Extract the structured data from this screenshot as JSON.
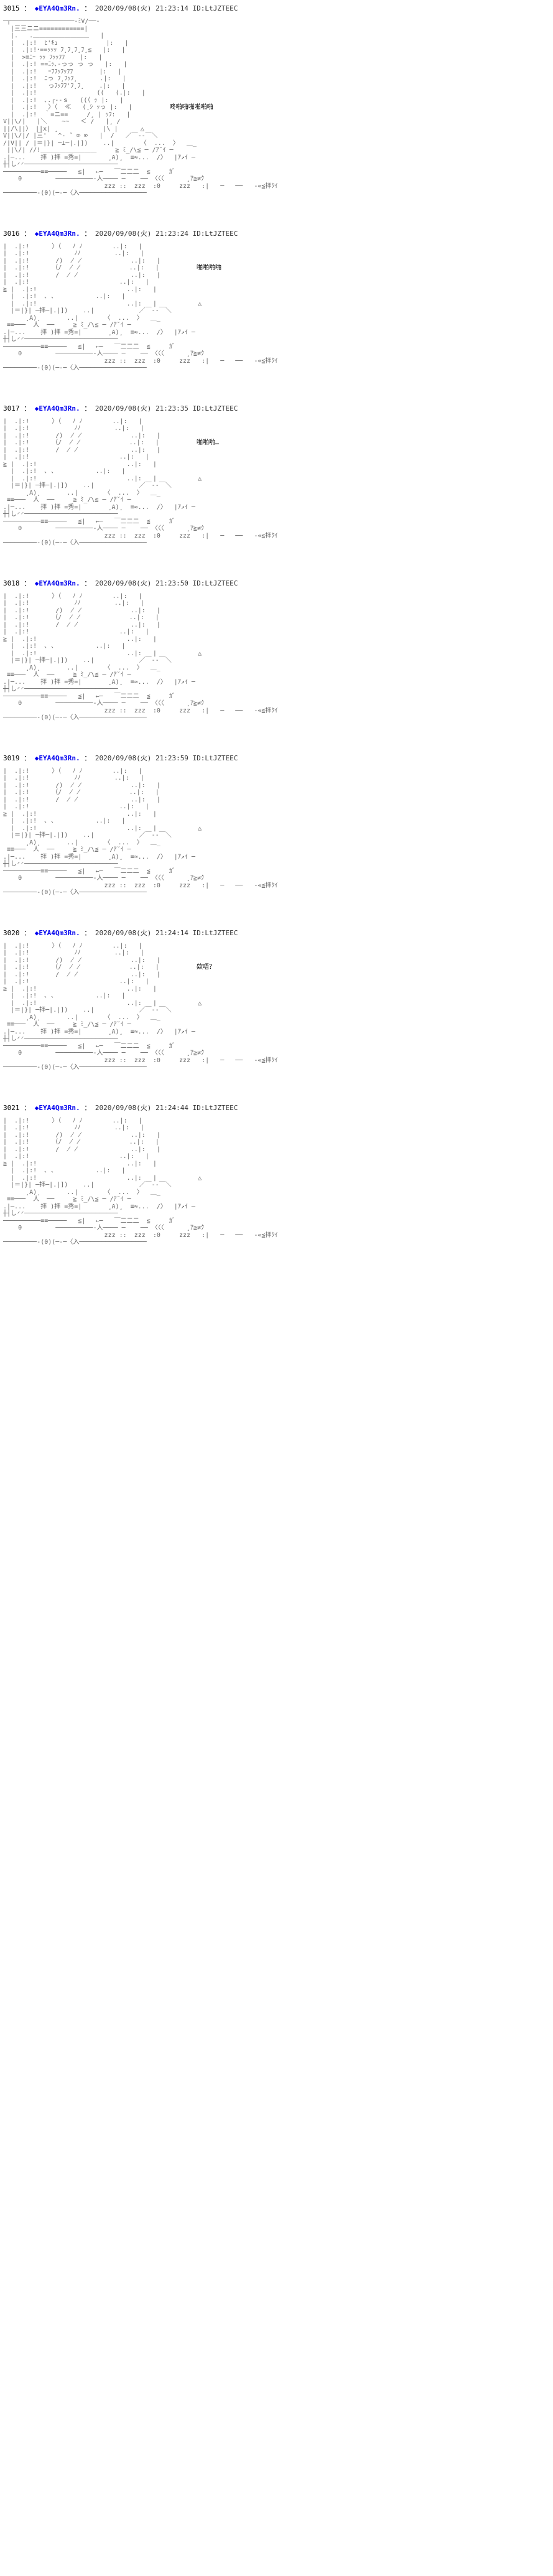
{
  "posts": [
    {
      "num": "3015",
      "name": "◆EYA4Qm3Rn.",
      "date": "2020/09/08(火) 21:23:14",
      "id": "ID:LtJZTEEC",
      "speech": "咚啪啪啪啪啪啪",
      "aa_type": "full"
    },
    {
      "num": "3016",
      "name": "◆EYA4Qm3Rn.",
      "date": "2020/09/08(火) 21:23:24",
      "id": "ID:LtJZTEEC",
      "speech": "啪啪啪啪",
      "aa_type": "partial"
    },
    {
      "num": "3017",
      "name": "◆EYA4Qm3Rn.",
      "date": "2020/09/08(火) 21:23:35",
      "id": "ID:LtJZTEEC",
      "speech": "啪啪啪…",
      "aa_type": "partial"
    },
    {
      "num": "3018",
      "name": "◆EYA4Qm3Rn.",
      "date": "2020/09/08(火) 21:23:50",
      "id": "ID:LtJZTEEC",
      "speech": "",
      "aa_type": "partial"
    },
    {
      "num": "3019",
      "name": "◆EYA4Qm3Rn.",
      "date": "2020/09/08(火) 21:23:59",
      "id": "ID:LtJZTEEC",
      "speech": "",
      "aa_type": "partial"
    },
    {
      "num": "3020",
      "name": "◆EYA4Qm3Rn.",
      "date": "2020/09/08(火) 21:24:14",
      "id": "ID:LtJZTEEC",
      "speech": "欸唔？",
      "aa_type": "partial"
    },
    {
      "num": "3021",
      "name": "◆EYA4Qm3Rn.",
      "date": "2020/09/08(火) 21:24:44",
      "id": "ID:LtJZTEEC",
      "speech": "",
      "aa_type": "partial"
    }
  ],
  "aa": {
    "full": "─┬─────────────────‐ﾐV/──‐\n  |三三ニニ============|\n  |.   .＿＿＿＿＿＿＿＿＿   |\n  |  .|:!  ﾋ'ｷｭ             |:   |\n  |  .|:!･==ｯｯｯ ﾌ¸ﾌ¸ﾌ¸ﾌ¸≦   |:   |\n  |  >≡ﾆｰ ｯｯ ﾌｯｯﾌﾌ    |:   |\n  |  .|:! ==ﾆｯ､-っっ っ っ   |:   |\n  |  .|:!   ｰﾌﾌｯﾌｯﾌﾌ       |:   |\n  |  .|:!  ﾆっ ﾌ¸ﾌｯﾌ¸      .|:   |\n  |  .|:!   っﾌｯﾌﾌ'ﾌ¸ﾌ¸    .|:   |\n  |  .|:!                ((   (.|:   |\n  |  .|:!  ､.┌‐‐ｓ   ((（ ｯ |:   |\n  |  .|:!   〉（  ≪   (¸ｼ ｯっ |:   |          <span class=\"speech\">咚啪啪啪啪啪啪</span>\n  |  .|:!  ｀=ニ==     /¸ | ｯﾌ:   |\nV||\\/|   |＼    ~~   ＜ /   |¸ /\n||/\\||〉 ||x| ¸            |\\ |      △\nV||\\/|/ |三'   ^‐ ˘ ⌦ ⌦   |  /   ／￣-‐￣＼\n/|V|| / |＝|}| ─⊥─|.|])    ..|       〈  ...  〉  ＿_\n ||\\/| //!＿＿＿＿＿＿＿＿＿     ≧ ﾐ_/\\≦ ─ /ｱ˘ｲ ─\n.|─...    拝 )拝 =秀=|       ¸A)¸  ≡≈...  /〉  |ｱ↗ｲ ─\n┼┤し◜◜─────────────────────────\n──────────≡≡─────   ≦|　 ←─   ￣二二二  ≦     ｶﾞ\n    0         ──────────‐人──── ─    ── 〈〈〈      ¸ｱ≧≠ｸ\n                           zzz ::  zzz  :0     zzz   :|   ─   ──   -«≦拝ｸｲ\n─────────‐(0)(─‐─〈入──────────────────\n",
    "partial": "|  .|:!      〉（   ﾉ ﾉ        ..|:   |\n|  .|:!            ﾉﾉ         ..|:   |\n|  .|:!       /)  ̸ ̸             ..|:   |\n|  .|:!      （/  ̸ ̸             ..|:   |          {{SPEECH}}\n|  .|:!       /  ̸ ̸              ..|:   |\n|  .|:!                        ..|:   |\n≧ |  .|:!                        ..|:   |\n  |  .|:!  ､ ､           ..|:   |\n  |  .|:!                        ..|:   |           △\n  |＝|}| ─拝─|.|])    ..|            ／￣-‐￣＼\n      ¸A)¸       ..|       〈  ...  〉  ＿_\n ≡≡───  人  ──     ≧ ﾐ_/\\≦ ─ /ｱ˘ｲ ─\n.|─...    拝 )拝 =秀=|       ¸A)¸  ≡≈...  /〉  |ｱ↗ｲ ─\n┼┤し◜◜─────────────────────────\n──────────≡≡─────   ≦|　 ←─   ￣二二二  ≦     ｶﾞ\n    0         ──────────‐人──── ─    ── 〈〈〈      ¸ｱ≧≠ｸ\n                           zzz ::  zzz  :0     zzz   :|   ─   ──   -«≦拝ｸｲ\n─────────‐(0)(─‐─〈入──────────────────\n"
  }
}
